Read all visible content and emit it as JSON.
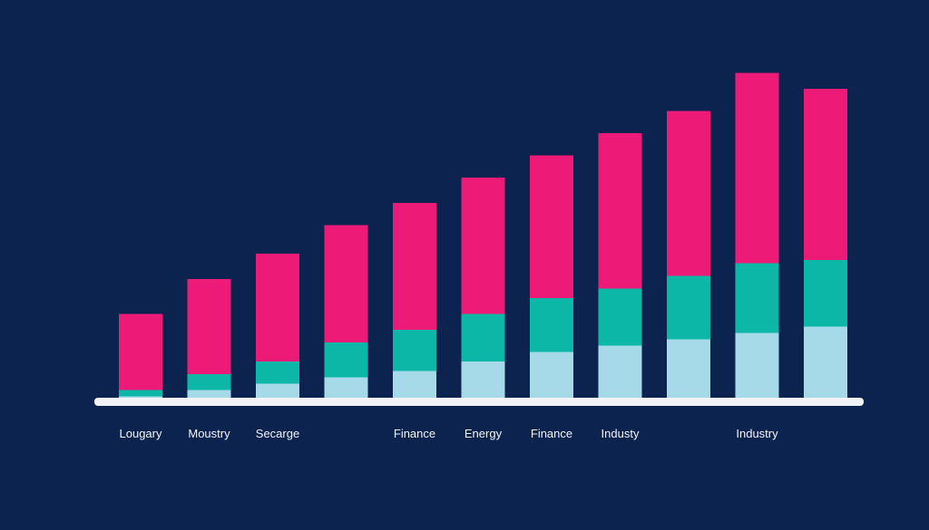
{
  "colors": {
    "background": "#0c2350",
    "segment_bottom": "#a6dae8",
    "segment_middle": "#0cb7a8",
    "segment_top": "#ee1a78",
    "baseline": "#f1f3f6",
    "label_text": "#f2f4f8"
  },
  "chart_data": {
    "type": "bar",
    "stacked": true,
    "title": "",
    "xlabel": "",
    "ylabel": "",
    "grid": false,
    "legend": "none",
    "ylim": [
      0,
      100
    ],
    "categories": [
      "Lougary",
      "Moustry",
      "Secarge",
      "",
      "Finance",
      "Energy",
      "Finance",
      "Industy",
      "",
      "Industry",
      ""
    ],
    "series": [
      {
        "name": "bottom",
        "values": [
          3,
          5,
          7,
          9,
          11,
          14,
          17,
          19,
          21,
          23,
          25
        ]
      },
      {
        "name": "middle",
        "values": [
          2,
          5,
          7,
          11,
          13,
          15,
          17,
          18,
          20,
          22,
          21
        ]
      },
      {
        "name": "top",
        "values": [
          24,
          30,
          34,
          37,
          40,
          43,
          45,
          49,
          52,
          60,
          54
        ]
      }
    ]
  }
}
